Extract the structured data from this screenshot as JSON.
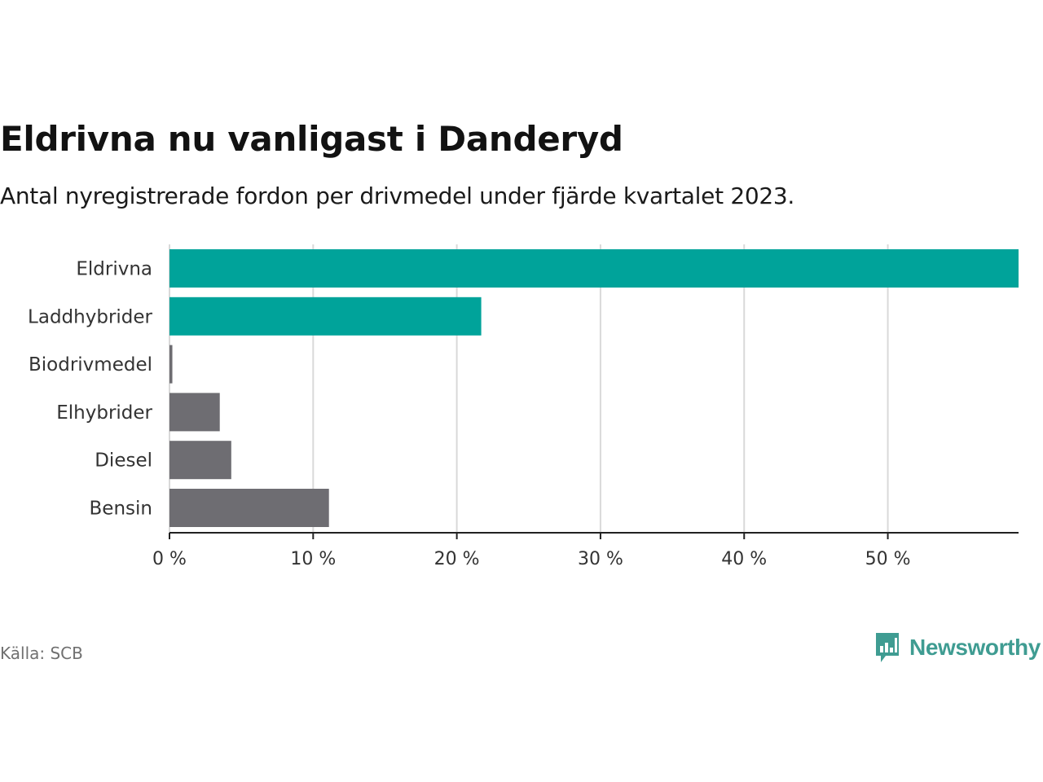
{
  "chart_data": {
    "type": "bar",
    "orientation": "horizontal",
    "title": "Eldrivna nu vanligast i Danderyd",
    "subtitle": "Antal nyregistrerade fordon per drivmedel under fjärde kvartalet 2023.",
    "categories": [
      "Eldrivna",
      "Laddhybrider",
      "Biodrivmedel",
      "Elhybrider",
      "Diesel",
      "Bensin"
    ],
    "values": [
      59.1,
      21.7,
      0.2,
      3.5,
      4.3,
      11.1
    ],
    "colors": [
      "#00a39a",
      "#00a39a",
      "#6e6d72",
      "#6e6d72",
      "#6e6d72",
      "#6e6d72"
    ],
    "xlim": [
      0,
      59.1
    ],
    "xticks": [
      0,
      10,
      20,
      30,
      40,
      50
    ],
    "xtick_labels": [
      "0 %",
      "10 %",
      "20 %",
      "30 %",
      "40 %",
      "50 %"
    ],
    "xlabel": "",
    "ylabel": "",
    "grid": true,
    "unit": "%"
  },
  "footer": {
    "source": "Källa: SCB",
    "brand": "Newsworthy",
    "brand_color": "#3f9c92"
  }
}
